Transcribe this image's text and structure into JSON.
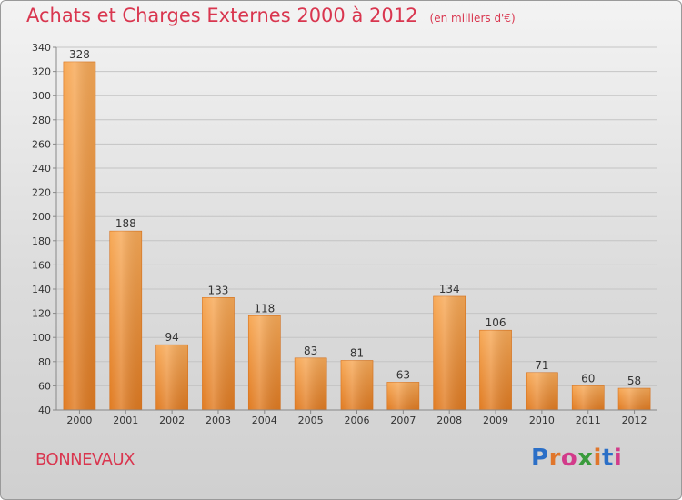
{
  "title": {
    "main": "Achats et Charges Externes 2000 à 2012",
    "unit": "(en milliers d'€)"
  },
  "commune": "BONNEVAUX",
  "logo": {
    "text": "Proxiti",
    "letter_colors": [
      "#2b6fc7",
      "#e0762b",
      "#d23b8a",
      "#3a9b3c",
      "#e0762b",
      "#2b6fc7",
      "#d23b8a"
    ]
  },
  "colors": {
    "bar_light": "#f7a957",
    "bar_dark": "#e07b22",
    "title": "#d9364f",
    "grid": "#c4c4c4"
  },
  "chart_data": {
    "type": "bar",
    "categories": [
      "2000",
      "2001",
      "2002",
      "2003",
      "2004",
      "2005",
      "2006",
      "2007",
      "2008",
      "2009",
      "2010",
      "2011",
      "2012"
    ],
    "values": [
      328,
      188,
      94,
      133,
      118,
      83,
      81,
      63,
      134,
      106,
      71,
      60,
      58
    ],
    "title": "Achats et Charges Externes 2000 à 2012",
    "ylim": [
      40,
      340
    ],
    "yticks": [
      40,
      60,
      80,
      100,
      120,
      140,
      160,
      180,
      200,
      220,
      240,
      260,
      280,
      300,
      320,
      340
    ],
    "grid": true,
    "data_labels": true
  }
}
